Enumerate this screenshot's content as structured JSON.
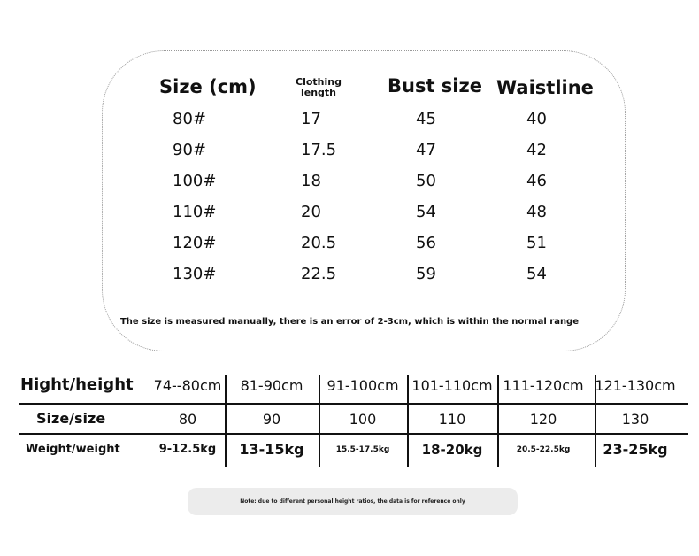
{
  "measurement_table": {
    "headers": {
      "size": "Size (cm)",
      "length": "Clothing length",
      "bust": "Bust size",
      "waist": "Waistline"
    },
    "rows": [
      {
        "size": "80#",
        "length": "17",
        "bust": "45",
        "waist": "40"
      },
      {
        "size": "90#",
        "length": "17.5",
        "bust": "47",
        "waist": "42"
      },
      {
        "size": "100#",
        "length": "18",
        "bust": "50",
        "waist": "46"
      },
      {
        "size": "110#",
        "length": "20",
        "bust": "54",
        "waist": "48"
      },
      {
        "size": "120#",
        "length": "20.5",
        "bust": "56",
        "waist": "51"
      },
      {
        "size": "130#",
        "length": "22.5",
        "bust": "59",
        "waist": "54"
      }
    ],
    "note": "The size is measured manually, there is an error of 2-3cm, which is within the normal range"
  },
  "fit_table": {
    "labels": {
      "height": "Hight/height",
      "size": "Size/size",
      "weight": "Weight/weight"
    },
    "heights": [
      "74--80cm",
      "81-90cm",
      "91-100cm",
      "101-110cm",
      "111-120cm",
      "121-130cm"
    ],
    "sizes": [
      "80",
      "90",
      "100",
      "110",
      "120",
      "130"
    ],
    "weights": [
      "9-12.5kg",
      "13-15kg",
      "15.5-17.5kg",
      "18-20kg",
      "20.5-22.5kg",
      "23-25kg"
    ]
  },
  "footer_note": "Note: due to different personal height ratios, the data is for reference only"
}
